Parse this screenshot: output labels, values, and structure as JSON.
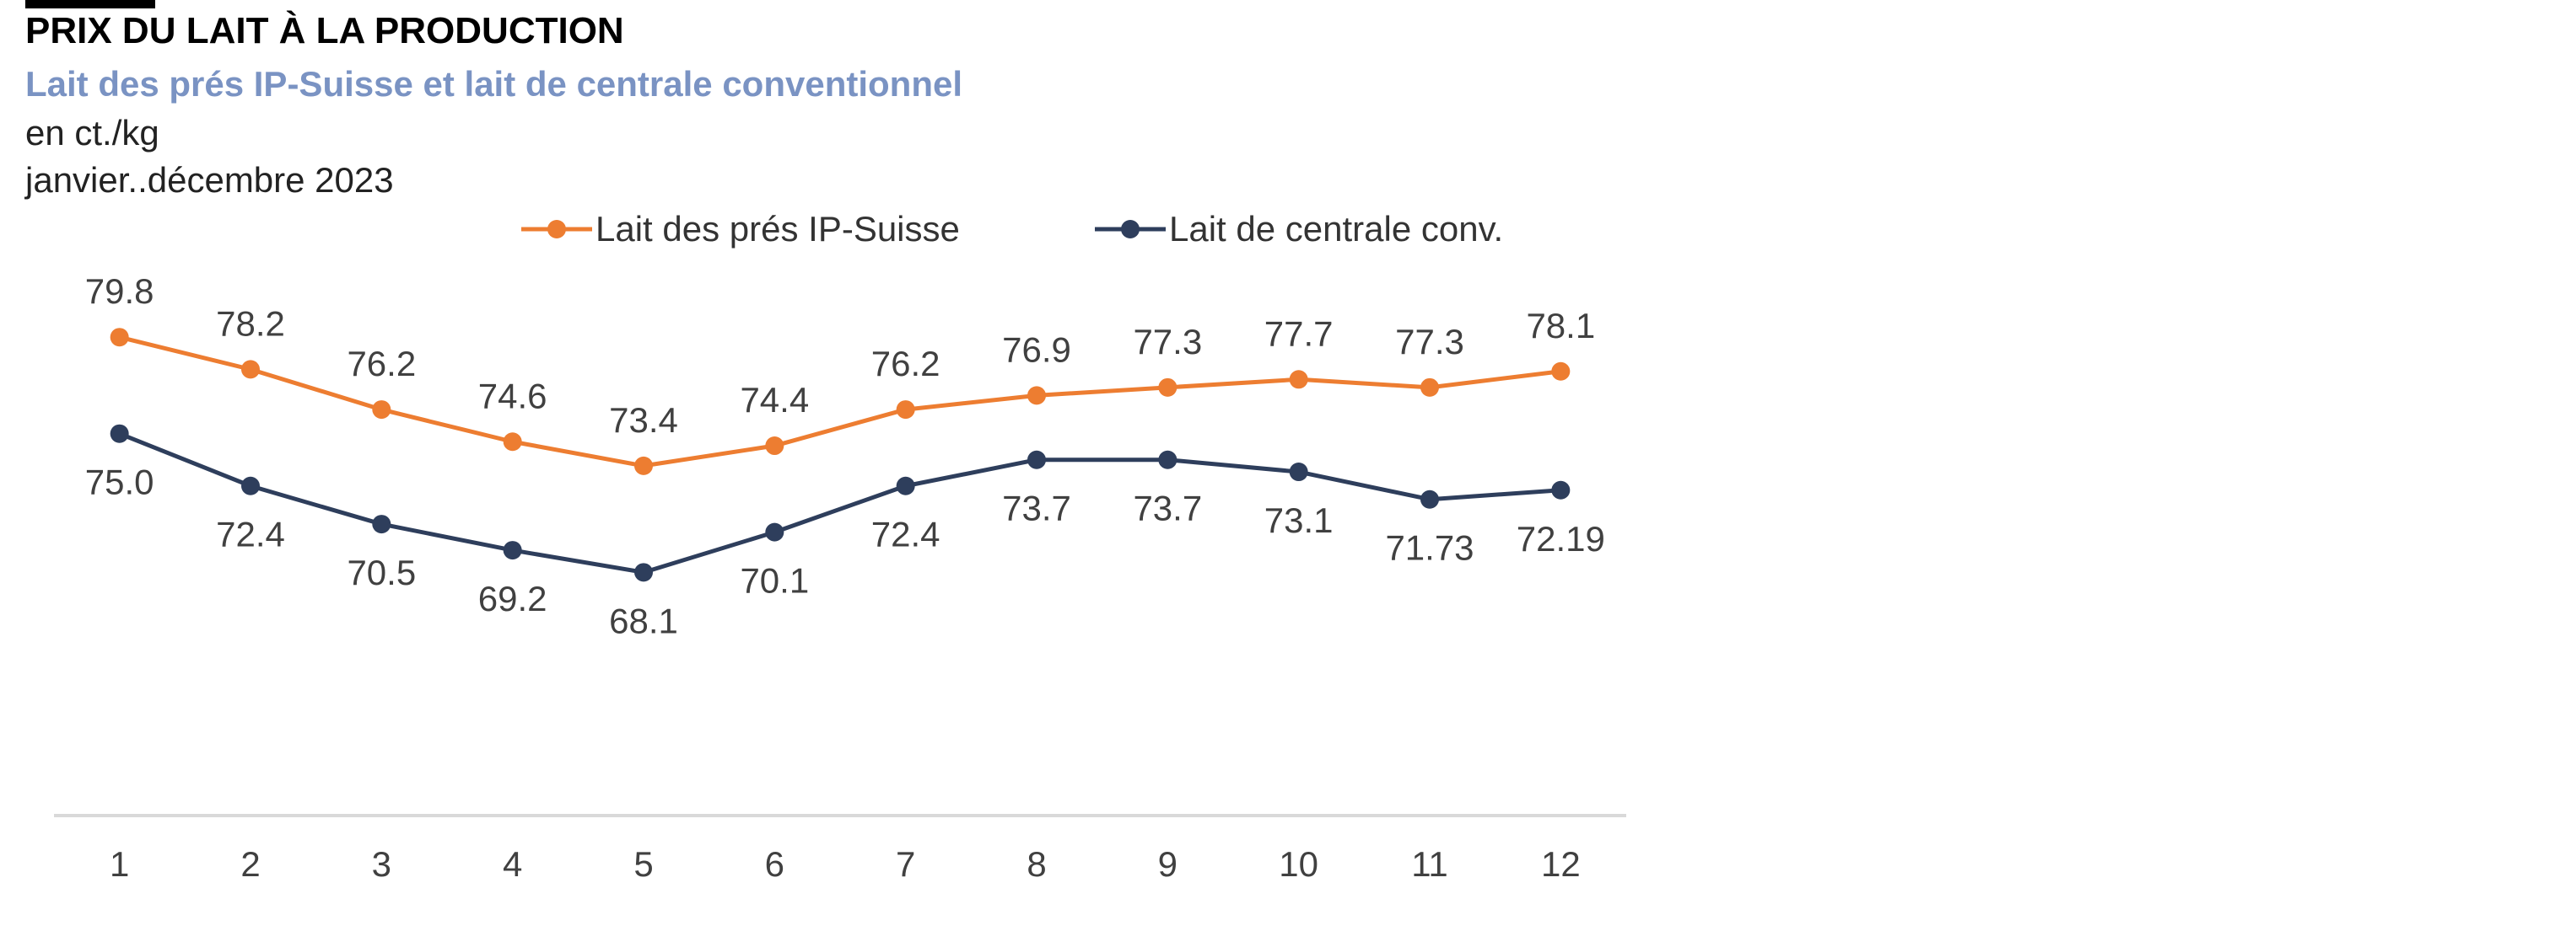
{
  "header": {
    "title": "PRIX DU LAIT À LA PRODUCTION",
    "subtitle": "Lait des prés IP-Suisse et lait de centrale conventionnel",
    "unit": "en ct./kg",
    "period": "janvier..décembre 2023"
  },
  "colors": {
    "ipsuisse": "#ED7D31",
    "conv": "#2E3E5C",
    "subtitle": "#7A93C3",
    "axis": "#D9D9D9"
  },
  "chart_data": {
    "type": "line",
    "title": "PRIX DU LAIT À LA PRODUCTION",
    "xlabel": "",
    "ylabel": "en ct./kg",
    "x": [
      "1",
      "2",
      "3",
      "4",
      "5",
      "6",
      "7",
      "8",
      "9",
      "10",
      "11",
      "12"
    ],
    "ylim": [
      56,
      84
    ],
    "grid": false,
    "legend_position": "top",
    "series": [
      {
        "name": "Lait des prés IP-Suisse",
        "color": "#ED7D31",
        "values": [
          79.8,
          78.2,
          76.2,
          74.6,
          73.4,
          74.4,
          76.2,
          76.9,
          77.3,
          77.7,
          77.3,
          78.1
        ],
        "labels": [
          "79.8",
          "78.2",
          "76.2",
          "74.6",
          "73.4",
          "74.4",
          "76.2",
          "76.9",
          "77.3",
          "77.7",
          "77.3",
          "78.1"
        ],
        "label_position": "above"
      },
      {
        "name": "Lait de centrale conv.",
        "color": "#2E3E5C",
        "values": [
          75.0,
          72.4,
          70.5,
          69.2,
          68.1,
          70.1,
          72.4,
          73.7,
          73.7,
          73.1,
          71.73,
          72.19
        ],
        "labels": [
          "75.0",
          "72.4",
          "70.5",
          "69.2",
          "68.1",
          "70.1",
          "72.4",
          "73.7",
          "73.7",
          "73.1",
          "71.73",
          "72.19"
        ],
        "label_position": "below"
      }
    ]
  }
}
